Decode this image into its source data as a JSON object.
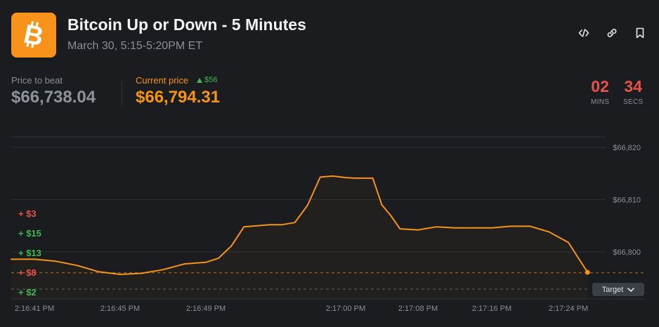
{
  "header": {
    "title": "Bitcoin Up or Down - 5 Minutes",
    "subtitle": "March 30, 5:15-5:20PM ET",
    "logo_icon": "bitcoin-icon",
    "actions": [
      {
        "name": "embed-icon",
        "label": "embed"
      },
      {
        "name": "link-icon",
        "label": "link"
      },
      {
        "name": "bookmark-icon",
        "label": "bookmark"
      }
    ]
  },
  "price_to_beat": {
    "label": "Price to beat",
    "value": "$66,738.04"
  },
  "current_price": {
    "label": "Current price",
    "delta": "$56",
    "value": "$66,794.31"
  },
  "timer": {
    "mins": "02",
    "mins_label": "MINS",
    "secs": "34",
    "secs_label": "SECS"
  },
  "target_button": {
    "label": "Target"
  },
  "colors": {
    "accent": "#f7931a",
    "up": "#3fb950",
    "down": "#e5534b",
    "background": "#1a1c1f"
  },
  "chart_data": {
    "type": "line",
    "y_ticks": [
      "$66,820",
      "$66,810",
      "$66,800"
    ],
    "x_ticks": [
      "2:16:41 PM",
      "2:16:45 PM",
      "2:16:49 PM",
      "2:17:00 PM",
      "2:17:08 PM",
      "2:17:16 PM",
      "2:17:24 PM"
    ],
    "ylim": [
      66791,
      66822
    ],
    "target": 66796,
    "series": [
      {
        "x": [
          "2:16:41",
          "2:16:42",
          "2:16:43",
          "2:16:44",
          "2:16:45",
          "2:16:46",
          "2:16:47",
          "2:16:48",
          "2:16:49",
          "2:16:50",
          "2:16:51",
          "2:16:52",
          "2:16:53",
          "2:16:54",
          "2:16:55",
          "2:16:56",
          "2:16:57",
          "2:16:58",
          "2:16:59",
          "2:17:00",
          "2:17:01",
          "2:17:02",
          "2:17:03",
          "2:17:04",
          "2:17:05",
          "2:17:06",
          "2:17:08",
          "2:17:10",
          "2:17:12",
          "2:17:14",
          "2:17:16",
          "2:17:18",
          "2:17:20",
          "2:17:22",
          "2:17:24",
          "2:17:26"
        ],
        "y": [
          66798.6,
          66798.2,
          66797.4,
          66796.2,
          66795.7,
          66795.9,
          66796.6,
          66797.7,
          66798.0,
          66798.8,
          66801.1,
          66804.8,
          66805.0,
          66805.2,
          66805.2,
          66805.6,
          66808.9,
          66814.3,
          66814.5,
          66814.2,
          66814.1,
          66814.1,
          66814.1,
          66809.0,
          66806.9,
          66804.4,
          66804.2,
          66804.8,
          66804.6,
          66804.6,
          66804.6,
          66804.9,
          66804.9,
          66803.8,
          66801.8,
          66796.1
        ]
      }
    ]
  },
  "bet_labels": [
    {
      "text": "+ $3",
      "dir": "down"
    },
    {
      "text": "+ $15",
      "dir": "up"
    },
    {
      "text": "+ $13",
      "dir": "up"
    },
    {
      "text": "+ $8",
      "dir": "down"
    },
    {
      "text": "+ $2",
      "dir": "up"
    }
  ]
}
